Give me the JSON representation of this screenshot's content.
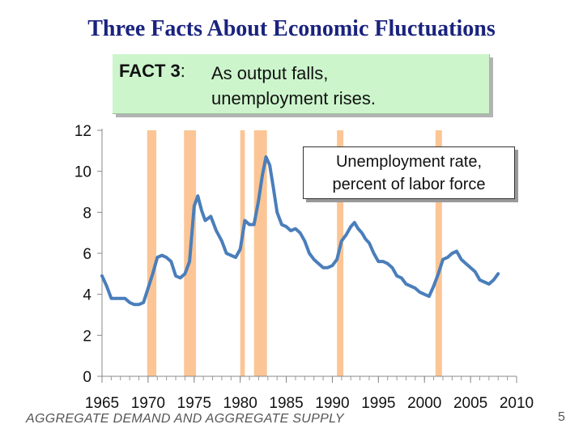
{
  "title": "Three Facts About Economic Fluctuations",
  "fact": {
    "label_bold": "FACT 3",
    "label_rest": ":",
    "line1": "As output falls,",
    "line2": "unemployment rises."
  },
  "footer": "AGGREGATE DEMAND AND AGGREGATE SUPPLY",
  "page_number": "5",
  "chart_data": {
    "type": "line",
    "title": "",
    "legend_lines": [
      "Unemployment rate,",
      "percent of labor force"
    ],
    "xlim": [
      1965,
      2010
    ],
    "ylim": [
      0,
      12
    ],
    "x_ticks": [
      1965,
      1970,
      1975,
      1980,
      1985,
      1990,
      1995,
      2000,
      2005,
      2010
    ],
    "y_ticks": [
      0,
      2,
      4,
      6,
      8,
      10,
      12
    ],
    "grid": false,
    "line_color": "#4a7ebb",
    "recession_color": "#fbc595",
    "recessions": [
      [
        1969.9,
        1970.9
      ],
      [
        1973.9,
        1975.2
      ],
      [
        1980.0,
        1980.5
      ],
      [
        1981.5,
        1982.9
      ],
      [
        1990.5,
        1991.2
      ],
      [
        2001.2,
        2001.9
      ]
    ],
    "series": [
      {
        "x": [
          1965.0,
          1965.5,
          1966.0,
          1966.5,
          1967.0,
          1967.5,
          1968.0,
          1968.5,
          1969.0,
          1969.5,
          1970.0,
          1970.5,
          1971.0,
          1971.5,
          1972.0,
          1972.5,
          1973.0,
          1973.5,
          1974.0,
          1974.5,
          1975.0,
          1975.4,
          1975.8,
          1976.2,
          1976.8,
          1977.4,
          1978.0,
          1978.5,
          1979.0,
          1979.5,
          1980.0,
          1980.5,
          1981.0,
          1981.5,
          1982.0,
          1982.4,
          1982.8,
          1983.2,
          1983.6,
          1984.0,
          1984.5,
          1985.0,
          1985.5,
          1986.0,
          1986.5,
          1987.0,
          1987.5,
          1988.0,
          1988.5,
          1989.0,
          1989.5,
          1990.0,
          1990.5,
          1991.0,
          1991.5,
          1992.0,
          1992.4,
          1992.8,
          1993.2,
          1993.6,
          1994.0,
          1994.5,
          1995.0,
          1995.5,
          1996.0,
          1996.5,
          1997.0,
          1997.5,
          1998.0,
          1998.5,
          1999.0,
          1999.5,
          2000.0,
          2000.5,
          2001.0,
          2001.5,
          2002.0,
          2002.5,
          2003.0,
          2003.5,
          2004.0,
          2004.5,
          2005.0,
          2005.5,
          2006.0,
          2006.5,
          2007.0,
          2007.5,
          2008.0
        ],
        "values": [
          4.9,
          4.4,
          3.8,
          3.8,
          3.8,
          3.8,
          3.6,
          3.5,
          3.5,
          3.6,
          4.3,
          5.0,
          5.8,
          5.9,
          5.8,
          5.6,
          4.9,
          4.8,
          5.0,
          5.6,
          8.3,
          8.8,
          8.1,
          7.6,
          7.8,
          7.1,
          6.6,
          6.0,
          5.9,
          5.8,
          6.2,
          7.6,
          7.4,
          7.4,
          8.6,
          9.8,
          10.7,
          10.3,
          9.2,
          8.0,
          7.4,
          7.3,
          7.1,
          7.2,
          7.0,
          6.6,
          6.0,
          5.7,
          5.5,
          5.3,
          5.3,
          5.4,
          5.7,
          6.6,
          6.9,
          7.3,
          7.5,
          7.2,
          7.0,
          6.7,
          6.5,
          6.0,
          5.6,
          5.6,
          5.5,
          5.3,
          4.9,
          4.8,
          4.5,
          4.4,
          4.3,
          4.1,
          4.0,
          3.9,
          4.4,
          5.0,
          5.7,
          5.8,
          6.0,
          6.1,
          5.7,
          5.5,
          5.3,
          5.1,
          4.7,
          4.6,
          4.5,
          4.7,
          5.0
        ]
      }
    ]
  }
}
